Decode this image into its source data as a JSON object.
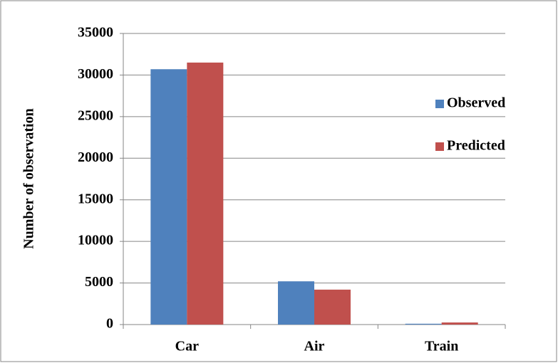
{
  "chart_data": {
    "type": "bar",
    "y_label": "Number of observation",
    "categories": [
      "Car",
      "Air",
      "Train"
    ],
    "series": [
      {
        "name": "Observed",
        "color": "#4f81bd",
        "values": [
          30700,
          5200,
          100
        ]
      },
      {
        "name": "Predicted",
        "color": "#c0504d",
        "values": [
          31500,
          4200,
          250
        ]
      }
    ],
    "ylim": [
      0,
      35000
    ],
    "yticks": [
      0,
      5000,
      10000,
      15000,
      20000,
      25000,
      30000,
      35000
    ],
    "grid": true,
    "legend": "right"
  }
}
